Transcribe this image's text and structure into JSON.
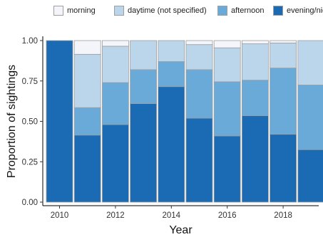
{
  "chart_data": {
    "type": "bar",
    "stacked": true,
    "categories": [
      "2010",
      "2011",
      "2012",
      "2013",
      "2014",
      "2015",
      "2016",
      "2017",
      "2018",
      "2019"
    ],
    "series": [
      {
        "name": "evening/night",
        "color": "#1a6bb4",
        "values": [
          1.0,
          0.415,
          0.48,
          0.61,
          0.715,
          0.52,
          0.41,
          0.535,
          0.42,
          0.325
        ]
      },
      {
        "name": "afternoon",
        "color": "#6aaad9",
        "values": [
          0.0,
          0.17,
          0.26,
          0.21,
          0.155,
          0.3,
          0.335,
          0.22,
          0.41,
          0.4
        ]
      },
      {
        "name": "daytime (not specified)",
        "color": "#bbd5eb",
        "values": [
          0.0,
          0.33,
          0.225,
          0.18,
          0.13,
          0.155,
          0.21,
          0.225,
          0.155,
          0.275
        ]
      },
      {
        "name": "morning",
        "color": "#f3f5fa",
        "values": [
          0.0,
          0.085,
          0.035,
          0.0,
          0.0,
          0.025,
          0.045,
          0.02,
          0.015,
          0.0
        ]
      }
    ],
    "legend_order": [
      "morning",
      "daytime (not specified)",
      "afternoon",
      "evening/night"
    ],
    "xlabel": "Year",
    "ylabel": "Proportion of sightings",
    "ylim": [
      0,
      1
    ],
    "yticks": [
      "0.00",
      "0.25",
      "0.50",
      "0.75",
      "1.00"
    ],
    "xticks": [
      "2010",
      "2012",
      "2014",
      "2016",
      "2018"
    ],
    "legend_position": "top",
    "grid": false
  }
}
